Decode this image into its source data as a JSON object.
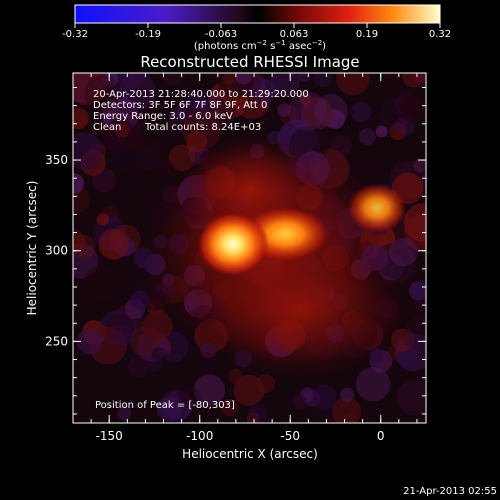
{
  "colorbar": {
    "ticks": [
      "-0.32",
      "-0.19",
      "-0.063",
      "0.063",
      "0.19",
      "0.32"
    ],
    "units_prefix": "(photons cm",
    "units_exp1": "−2",
    "units_mid": " s",
    "units_exp2": "−1",
    "units_mid2": " asec",
    "units_exp3": "−2",
    "units_suffix": ")",
    "colormap": "black-purple-red-yellow-white (rainbow-like)"
  },
  "title": "Reconstructed RHESSI Image",
  "info": {
    "time": "20-Apr-2013 21:28:40.000 to 21:29:20.000",
    "detectors": "Detectors: 3F 5F 6F 7F 8F 9F, Att 0",
    "energy": "Energy Range: 3.0 - 6.0 keV",
    "clean_label": "Clean",
    "total_counts": "Total counts: 8.24E+03",
    "peak": "Position of Peak = [-80,303]"
  },
  "axes": {
    "xlabel": "Heliocentric X (arcsec)",
    "ylabel": "Heliocentric Y (arcsec)",
    "xticks": [
      "-150",
      "-100",
      "-50",
      "0"
    ],
    "yticks": [
      "250",
      "300",
      "350"
    ],
    "xlim": [
      -170,
      25
    ],
    "ylim": [
      205,
      398
    ]
  },
  "image_sources": [
    {
      "x": -80,
      "y": 303,
      "peak": 0.32
    },
    {
      "x": -55,
      "y": 312,
      "peak": 0.24
    },
    {
      "x": -2,
      "y": 325,
      "peak": 0.2
    }
  ],
  "footer_date": "21-Apr-2013 02:55"
}
